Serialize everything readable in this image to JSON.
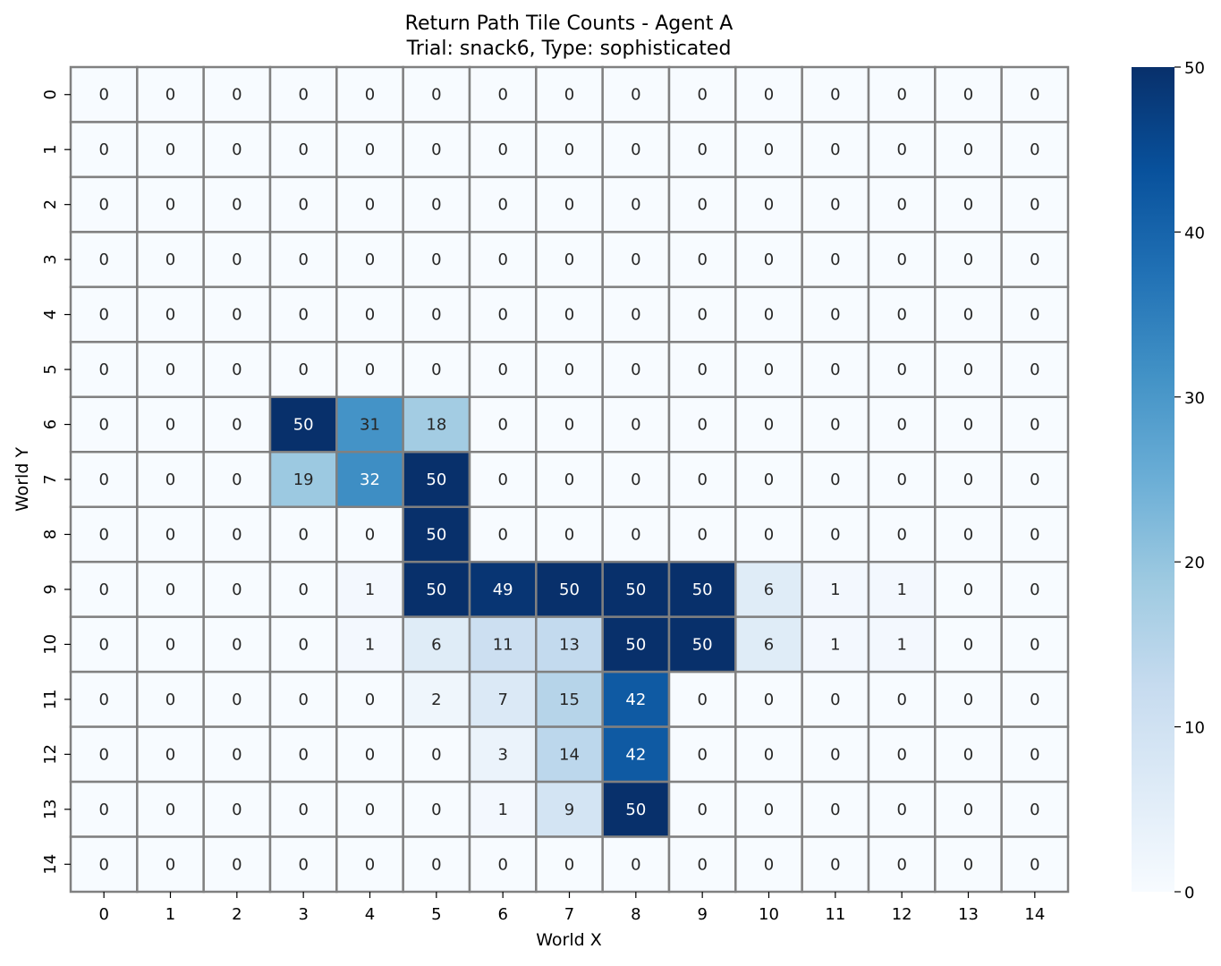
{
  "chart_data": {
    "type": "heatmap",
    "title": "Return Path Tile Counts - Agent A",
    "subtitle": "Trial: snack6, Type: sophisticated",
    "xlabel": "World X",
    "ylabel": "World Y",
    "x_ticks": [
      "0",
      "1",
      "2",
      "3",
      "4",
      "5",
      "6",
      "7",
      "8",
      "9",
      "10",
      "11",
      "12",
      "13",
      "14"
    ],
    "y_ticks": [
      "0",
      "1",
      "2",
      "3",
      "4",
      "5",
      "6",
      "7",
      "8",
      "9",
      "10",
      "11",
      "12",
      "13",
      "14"
    ],
    "values": [
      [
        0,
        0,
        0,
        0,
        0,
        0,
        0,
        0,
        0,
        0,
        0,
        0,
        0,
        0,
        0
      ],
      [
        0,
        0,
        0,
        0,
        0,
        0,
        0,
        0,
        0,
        0,
        0,
        0,
        0,
        0,
        0
      ],
      [
        0,
        0,
        0,
        0,
        0,
        0,
        0,
        0,
        0,
        0,
        0,
        0,
        0,
        0,
        0
      ],
      [
        0,
        0,
        0,
        0,
        0,
        0,
        0,
        0,
        0,
        0,
        0,
        0,
        0,
        0,
        0
      ],
      [
        0,
        0,
        0,
        0,
        0,
        0,
        0,
        0,
        0,
        0,
        0,
        0,
        0,
        0,
        0
      ],
      [
        0,
        0,
        0,
        0,
        0,
        0,
        0,
        0,
        0,
        0,
        0,
        0,
        0,
        0,
        0
      ],
      [
        0,
        0,
        0,
        50,
        31,
        18,
        0,
        0,
        0,
        0,
        0,
        0,
        0,
        0,
        0
      ],
      [
        0,
        0,
        0,
        19,
        32,
        50,
        0,
        0,
        0,
        0,
        0,
        0,
        0,
        0,
        0
      ],
      [
        0,
        0,
        0,
        0,
        0,
        50,
        0,
        0,
        0,
        0,
        0,
        0,
        0,
        0,
        0
      ],
      [
        0,
        0,
        0,
        0,
        1,
        50,
        49,
        50,
        50,
        50,
        6,
        1,
        1,
        0,
        0
      ],
      [
        0,
        0,
        0,
        0,
        1,
        6,
        11,
        13,
        50,
        50,
        6,
        1,
        1,
        0,
        0
      ],
      [
        0,
        0,
        0,
        0,
        0,
        2,
        7,
        15,
        42,
        0,
        0,
        0,
        0,
        0,
        0
      ],
      [
        0,
        0,
        0,
        0,
        0,
        0,
        3,
        14,
        42,
        0,
        0,
        0,
        0,
        0,
        0
      ],
      [
        0,
        0,
        0,
        0,
        0,
        0,
        1,
        9,
        50,
        0,
        0,
        0,
        0,
        0,
        0
      ],
      [
        0,
        0,
        0,
        0,
        0,
        0,
        0,
        0,
        0,
        0,
        0,
        0,
        0,
        0,
        0
      ]
    ],
    "colormap": "Blues",
    "vmin": 0,
    "vmax": 50,
    "colorbar_ticks": [
      "0",
      "10",
      "20",
      "30",
      "40",
      "50"
    ],
    "cell_border_color": "#808080"
  }
}
